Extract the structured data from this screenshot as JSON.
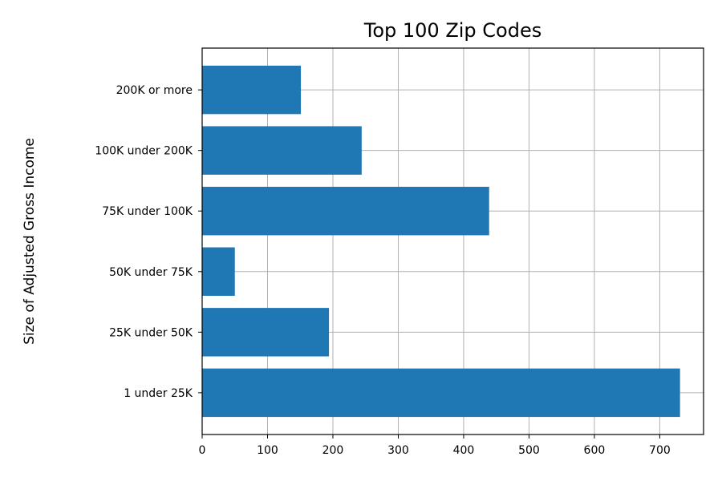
{
  "chart_data": {
    "type": "bar",
    "orientation": "horizontal",
    "title": "Top 100 Zip Codes",
    "xlabel": "",
    "ylabel": "Size of Adjusted Gross Income",
    "categories": [
      "1 under 25K",
      "25K under 50K",
      "50K under 75K",
      "75K under 100K",
      "100K under 200K",
      "200K or more"
    ],
    "values": [
      731,
      194,
      50,
      439,
      244,
      151
    ],
    "xlim": [
      0,
      767
    ],
    "xticks": [
      0,
      100,
      200,
      300,
      400,
      500,
      600,
      700
    ],
    "grid": true,
    "bar_color": "#1f77b4"
  }
}
